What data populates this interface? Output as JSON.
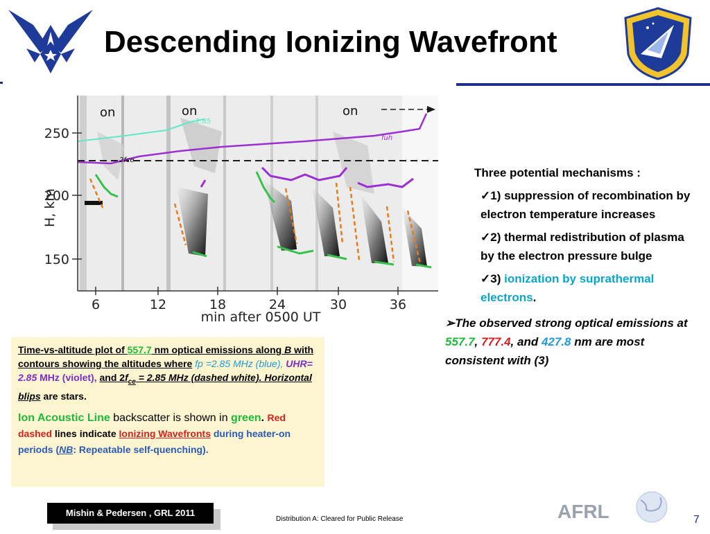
{
  "title": "Descending Ionizing Wavefront",
  "figure": {
    "ylabel": "H, km",
    "xlabel": "min after 0500 UT",
    "yticks": [
      "250",
      "200",
      "150"
    ],
    "xticks": [
      "6",
      "12",
      "18",
      "24",
      "30",
      "36"
    ],
    "on_labels": [
      "on",
      "on",
      "on"
    ],
    "curve_labels": {
      "uhr": "2.85",
      "fuh": "fuh",
      "two_fce": "2fce"
    }
  },
  "mechanisms": {
    "header": "Three potential mechanisms :",
    "items": [
      {
        "check": "✓",
        "text": "1) suppression of recombination by electron temperature increases"
      },
      {
        "check": "✓",
        "text": "2) thermal redistribution of plasma by the electron pressure bulge"
      },
      {
        "check": "✓",
        "prefix": "3) ",
        "highlight": "ionization by suprathermal electrons",
        "suffix": "."
      }
    ],
    "conclusion": {
      "arrow": "➢",
      "t1": "The observed strong optical emissions at ",
      "v1": "557.7",
      "sep1": ", ",
      "v2": "777.4",
      "sep2": ", and  ",
      "v3": "427.8",
      "t2": " nm are most consistent with (3)"
    }
  },
  "caption": {
    "l1a": "Time-vs-altitude plot of ",
    "l1b": "557.7",
    "l1c": " nm optical emissions along  ",
    "l1d": "B",
    "l1e": " with contours showing the altitudes where",
    "l2a": "fp =2.85 MHz (blue), ",
    "l2b": "UHR= 2.85",
    "l2c": " MHz (violet), ",
    "l2d": "and 2",
    "l2e": "f",
    "l2f": "ce",
    "l2g": " = 2.85 MHz (dashed white). Horizontal blips",
    "l2h": " are stars.",
    "p2a": "Ion  Acoustic Line",
    "p2b": " backscatter is shown in ",
    "p2c": "green",
    "p2d": ".  ",
    "p2e": "Red dashed",
    "p2f": " lines indicate ",
    "p2g": "Ionizing Wavefronts",
    "p2h": " during  heater-on periods (",
    "p2i": "NB",
    "p2j": ": Repeatable self-quenching)."
  },
  "citation": "Mishin & Pedersen , GRL  2011",
  "distribution": "Distribution  A: Cleared for Public Release",
  "afrl_logo": "AFRL",
  "page_number": "7",
  "colors": {
    "title_rule": "#1f2f8a",
    "caption_bg": "#fdf5d0",
    "uhr": "#9b2fd1",
    "fp": "#5fe8c4",
    "wavefront": "#e87a1a",
    "ion_line": "#36c24a"
  }
}
